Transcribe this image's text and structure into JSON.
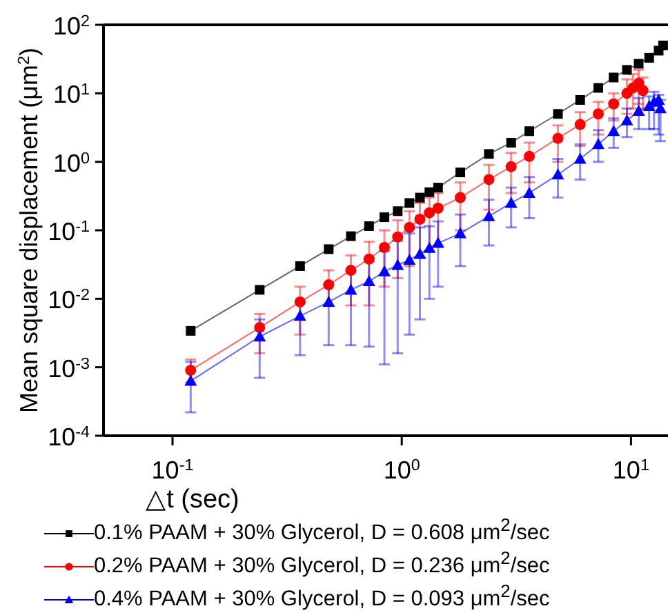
{
  "chart_data": {
    "type": "line",
    "xlabel": "△t (sec)",
    "ylabel": "Mean square displacement (μm$^{2}$)",
    "log": "xy",
    "grid": false,
    "legend": "bottom",
    "xlim": [
      0.05,
      14.5
    ],
    "xticks": [
      {
        "value": 0.1,
        "label": "10$^{-1}$"
      },
      {
        "value": 1,
        "label": "10$^{0}$"
      },
      {
        "value": 10,
        "label": "10$^{1}$"
      }
    ],
    "ylim": [
      0.0001,
      100
    ],
    "yticks": [
      {
        "value": 0.0001,
        "label": "10$^{-4}$"
      },
      {
        "value": 0.001,
        "label": "10$^{-3}$"
      },
      {
        "value": 0.01,
        "label": "10$^{-2}$"
      },
      {
        "value": 0.1,
        "label": "10$^{-1}$"
      },
      {
        "value": 1,
        "label": "10$^{0}$"
      },
      {
        "value": 10,
        "label": "10$^{1}$"
      },
      {
        "value": 100,
        "label": "10$^{2}$"
      }
    ],
    "series": [
      {
        "name": "0.1% PAAM + 30% Glycerol, D = 0.608 μm$^{2}$/sec",
        "color": "#000000",
        "marker": "square",
        "x": [
          0.12,
          0.24,
          0.36,
          0.48,
          0.6,
          0.72,
          0.84,
          0.96,
          1.08,
          1.2,
          1.32,
          1.44,
          1.8,
          2.4,
          3.0,
          3.6,
          4.8,
          6.0,
          7.2,
          8.4,
          9.6,
          10.8,
          12.0,
          13.2,
          13.8
        ],
        "values": [
          0.0034,
          0.0135,
          0.03,
          0.053,
          0.082,
          0.115,
          0.155,
          0.19,
          0.25,
          0.3,
          0.36,
          0.42,
          0.7,
          1.3,
          1.9,
          2.8,
          5,
          8,
          12,
          17,
          22,
          27,
          33,
          42,
          50
        ]
      },
      {
        "name": "0.2% PAAM + 30% Glycerol, D = 0.236 μm$^{2}$/sec",
        "color": "#ff0000",
        "marker": "circle",
        "x": [
          0.12,
          0.24,
          0.36,
          0.48,
          0.6,
          0.72,
          0.84,
          0.96,
          1.08,
          1.2,
          1.32,
          1.44,
          1.8,
          2.4,
          3.0,
          3.6,
          4.8,
          6.0,
          7.2,
          8.4,
          9.6,
          10.2,
          10.8,
          11.28
        ],
        "values": [
          0.0009,
          0.0038,
          0.009,
          0.016,
          0.026,
          0.038,
          0.056,
          0.08,
          0.11,
          0.145,
          0.18,
          0.21,
          0.3,
          0.55,
          0.85,
          1.2,
          2.2,
          3.5,
          5,
          7,
          10,
          12,
          14,
          11
        ],
        "errors": [
          [
            0.0006,
            0.0013
          ],
          [
            0.0016,
            0.006
          ],
          [
            0.003,
            0.015
          ],
          [
            0.008,
            0.026
          ],
          [
            0.008,
            0.043
          ],
          [
            0.008,
            0.068
          ],
          [
            0.015,
            0.1
          ],
          [
            0.02,
            0.14
          ],
          [
            0.03,
            0.19
          ],
          [
            0.04,
            0.25
          ],
          [
            0.05,
            0.3
          ],
          [
            0.06,
            0.35
          ],
          [
            0.1,
            0.5
          ],
          [
            0.2,
            0.9
          ],
          [
            0.35,
            1.35
          ],
          [
            0.5,
            1.9
          ],
          [
            1,
            3.4
          ],
          [
            1.7,
            5.3
          ],
          [
            2.5,
            7.5
          ],
          [
            4,
            10
          ],
          [
            5,
            16
          ],
          [
            6,
            19
          ],
          [
            7,
            22
          ],
          [
            6,
            17
          ]
        ]
      },
      {
        "name": "0.4% PAAM + 30% Glycerol, D = 0.093 μm$^{2}$/sec",
        "color": "#0000ff",
        "marker": "triangle",
        "x": [
          0.12,
          0.24,
          0.36,
          0.48,
          0.6,
          0.72,
          0.84,
          0.96,
          1.08,
          1.2,
          1.32,
          1.44,
          1.8,
          2.4,
          3.0,
          3.6,
          4.8,
          6.0,
          7.2,
          8.4,
          9.6,
          10.8,
          12.0,
          12.6,
          13.2,
          13.44
        ],
        "values": [
          0.00063,
          0.0028,
          0.0056,
          0.009,
          0.0135,
          0.018,
          0.025,
          0.031,
          0.037,
          0.045,
          0.055,
          0.065,
          0.09,
          0.16,
          0.25,
          0.35,
          0.65,
          1.1,
          1.8,
          2.8,
          4,
          5.5,
          6.5,
          7.5,
          8,
          6
        ],
        "errors": [
          [
            0.00022,
            0.0012
          ],
          [
            0.0007,
            0.005
          ],
          [
            0.0015,
            0.009
          ],
          [
            0.0021,
            0.016
          ],
          [
            0.0021,
            0.025
          ],
          [
            0.002,
            0.035
          ],
          [
            0.0011,
            0.05
          ],
          [
            0.0016,
            0.07
          ],
          [
            0.003,
            0.09
          ],
          [
            0.005,
            0.11
          ],
          [
            0.01,
            0.115
          ],
          [
            0.015,
            0.135
          ],
          [
            0.03,
            0.17
          ],
          [
            0.06,
            0.28
          ],
          [
            0.11,
            0.42
          ],
          [
            0.15,
            0.6
          ],
          [
            0.3,
            1.1
          ],
          [
            0.55,
            1.8
          ],
          [
            1,
            2.9
          ],
          [
            1.6,
            4.3
          ],
          [
            2.3,
            6
          ],
          [
            3,
            8.5
          ],
          [
            3,
            9
          ],
          [
            3,
            10.5
          ],
          [
            2.5,
            9.5
          ],
          [
            2,
            8
          ]
        ]
      }
    ]
  }
}
